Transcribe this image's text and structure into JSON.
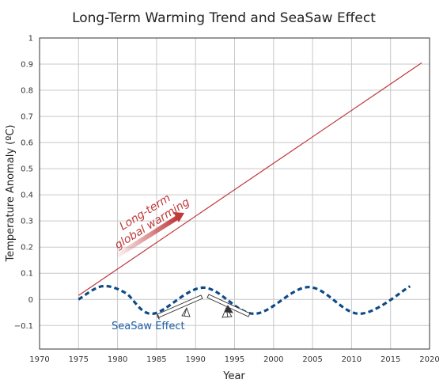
{
  "chart_data": {
    "type": "line",
    "title": "Long-Term Warming Trend and SeaSaw Effect",
    "xlabel": "Year",
    "ylabel": "Temperature Anomaly (ºC)",
    "xlim": [
      1970,
      2020
    ],
    "ylim": [
      -0.19,
      1
    ],
    "x_ticks": [
      "1970",
      "1975",
      "1980",
      "1985",
      "1990",
      "1995",
      "2000",
      "2005",
      "2010",
      "2015",
      "2020"
    ],
    "y_ticks": [
      "−0.1",
      "0",
      "0.1",
      "0.2",
      "0.3",
      "0.4",
      "0.5",
      "0.6",
      "0.7",
      "0.8",
      "0.9",
      "1"
    ],
    "grid": true,
    "series": [
      {
        "style": "solid",
        "color": "#c0393b",
        "x": [
          1975,
          2019
        ],
        "y": [
          0.015,
          0.905
        ]
      },
      {
        "style": "dashed",
        "color": "#0d4a86",
        "x": [
          1975,
          1978,
          1981,
          1984.5,
          1991,
          1997.5,
          2004.5,
          2011,
          2017.5
        ],
        "y": [
          0.0,
          0.05,
          0.025,
          -0.055,
          0.045,
          -0.055,
          0.047,
          -0.055,
          0.05
        ]
      }
    ],
    "annotations": {
      "warming_line1": "Long-term",
      "warming_line2": "global warming",
      "seasaw": "SeaSaw Effect"
    }
  }
}
